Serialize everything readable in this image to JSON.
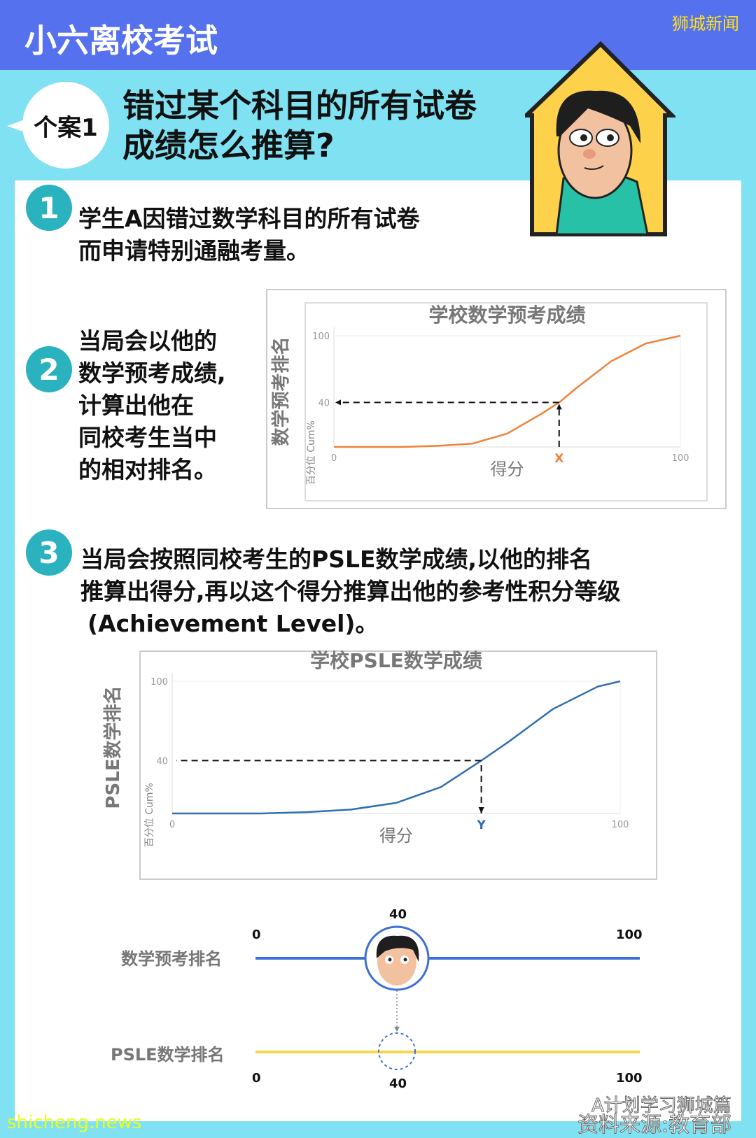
{
  "header": {
    "title": "小六离校考试",
    "brand": "狮城新闻"
  },
  "case": {
    "badge": "个案1",
    "title_line1": "错过某个科目的所有试卷",
    "title_line2": "成绩怎么推算?"
  },
  "steps": [
    {
      "number": "1",
      "lines": [
        "学生A因错过数学科目的所有试卷",
        "而申请特别通融考量。"
      ]
    },
    {
      "number": "2",
      "lines": [
        "当局会以他的",
        "数学预考成绩,",
        "计算出他在",
        "同校考生当中",
        "的相对排名。"
      ]
    },
    {
      "number": "3",
      "lines": [
        "当局会按照同校考生的PSLE数学成绩,以他的排名",
        "推算出得分,再以这个得分推算出他的参考性积分等级",
        "(Achievement Level)。"
      ]
    }
  ],
  "chart_data": [
    {
      "type": "line",
      "title": "学校数学预考成绩",
      "xlabel": "得分",
      "ylabel": "数学预考排名",
      "ylabel_inner": "百分位 Cum%",
      "xlim": [
        0,
        100
      ],
      "ylim": [
        0,
        100
      ],
      "x_ticks": [
        "0",
        "100"
      ],
      "y_ticks": [
        "40",
        "100"
      ],
      "marker_label": "X",
      "marker": {
        "x": 65,
        "y": 40
      },
      "color": "#f0823a",
      "x": [
        0,
        10,
        20,
        30,
        40,
        50,
        60,
        65,
        70,
        80,
        90,
        100
      ],
      "y": [
        0,
        0,
        0,
        1,
        3,
        12,
        30,
        40,
        53,
        77,
        93,
        100
      ]
    },
    {
      "type": "line",
      "title": "学校PSLE数学成绩",
      "xlabel": "得分",
      "ylabel": "PSLE数学排名",
      "ylabel_inner": "百分位 Cum%",
      "xlim": [
        0,
        100
      ],
      "ylim": [
        0,
        100
      ],
      "x_ticks": [
        "0",
        "100"
      ],
      "y_ticks": [
        "40",
        "100"
      ],
      "marker_label": "Y",
      "marker": {
        "x": 69,
        "y": 40
      },
      "color": "#2f6fb0",
      "x": [
        0,
        10,
        20,
        30,
        40,
        50,
        60,
        69,
        75,
        85,
        95,
        100
      ],
      "y": [
        0,
        0,
        0,
        1,
        3,
        8,
        20,
        40,
        54,
        79,
        96,
        100
      ]
    }
  ],
  "scales": {
    "top": {
      "label": "数学预考排名",
      "min": "0",
      "max": "100",
      "value": "40",
      "color": "#3d6fd8"
    },
    "bottom": {
      "label": "PSLE数学排名",
      "min": "0",
      "max": "100",
      "value": "40",
      "color": "#f9d648"
    }
  },
  "footer": {
    "watermark": "A计划学习狮城篇",
    "source": "资料来源:教育部",
    "site": "shicheng.news"
  }
}
